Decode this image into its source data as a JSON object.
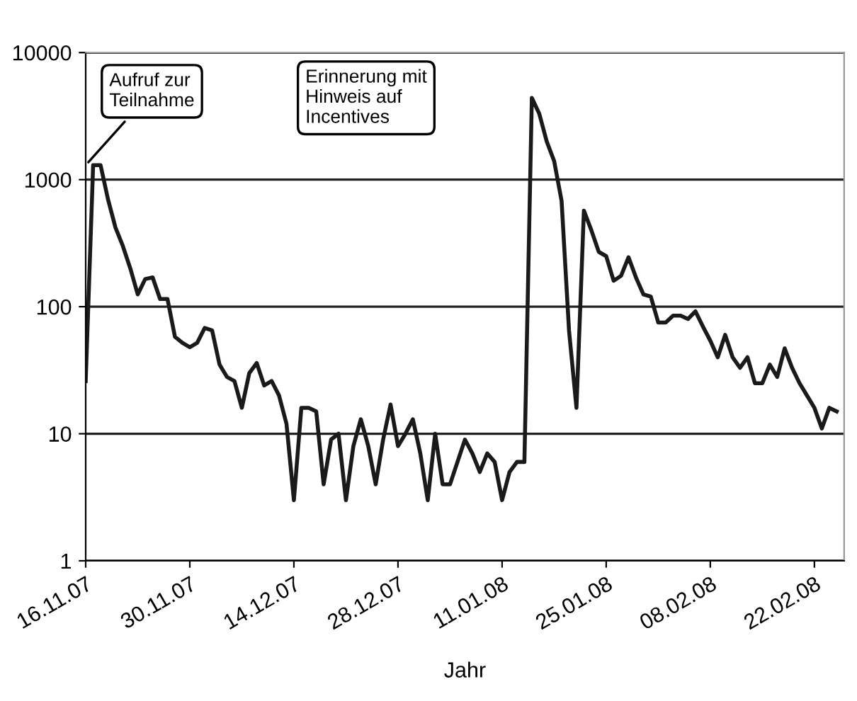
{
  "chart_data": {
    "type": "line",
    "xlabel": "Jahr",
    "log": "y",
    "grid": "y",
    "marker": "none",
    "line_style": "solid",
    "categories": [
      "16.11.07",
      null,
      null,
      null,
      null,
      null,
      null,
      null,
      null,
      null,
      null,
      null,
      null,
      null,
      "30.11.07",
      null,
      null,
      null,
      null,
      null,
      null,
      null,
      null,
      null,
      null,
      null,
      null,
      null,
      "14.12.07",
      null,
      null,
      null,
      null,
      null,
      null,
      null,
      null,
      null,
      null,
      null,
      null,
      null,
      "28.12.07",
      null,
      null,
      null,
      null,
      null,
      null,
      null,
      null,
      null,
      null,
      null,
      null,
      null,
      "11.01.08",
      null,
      null,
      null,
      null,
      null,
      null,
      null,
      null,
      null,
      null,
      null,
      null,
      null,
      "25.01.08",
      null,
      null,
      null,
      null,
      null,
      null,
      null,
      null,
      null,
      null,
      null,
      null,
      null,
      "08.02.08",
      null,
      null,
      null,
      null,
      null,
      null,
      null,
      null,
      null,
      null,
      null,
      null,
      null,
      "22.02.08",
      null,
      null,
      null
    ],
    "series": [
      {
        "color": "#1a1a1a",
        "values": [
          26,
          1300,
          1300,
          700,
          420,
          300,
          200,
          125,
          165,
          170,
          115,
          115,
          58,
          52,
          48,
          52,
          68,
          65,
          35,
          28,
          26,
          16,
          30,
          36,
          24,
          26,
          20,
          12,
          3,
          16,
          16,
          15,
          4,
          9,
          10,
          3,
          8,
          13,
          8,
          4,
          9,
          17,
          8,
          10,
          13,
          7,
          3,
          10,
          4,
          4,
          6,
          9,
          7,
          5,
          7,
          6,
          3,
          5,
          6,
          6,
          4400,
          3300,
          2000,
          1400,
          680,
          65,
          16,
          570,
          400,
          270,
          250,
          160,
          175,
          245,
          170,
          125,
          120,
          75,
          75,
          85,
          85,
          80,
          92,
          70,
          54,
          40,
          60,
          40,
          33,
          40,
          25,
          25,
          35,
          28,
          47,
          33,
          25,
          20,
          16,
          11,
          16,
          15
        ]
      }
    ],
    "ylim": [
      1,
      10000
    ],
    "yticks": [
      1,
      10,
      100,
      1000,
      10000
    ],
    "annotations": [
      {
        "text": "Aufruf zur\nTeilnahme",
        "x": "16.11.07",
        "y": 1300
      },
      "Erinnerung mit\nHinweis auf\nIncentives"
    ]
  }
}
